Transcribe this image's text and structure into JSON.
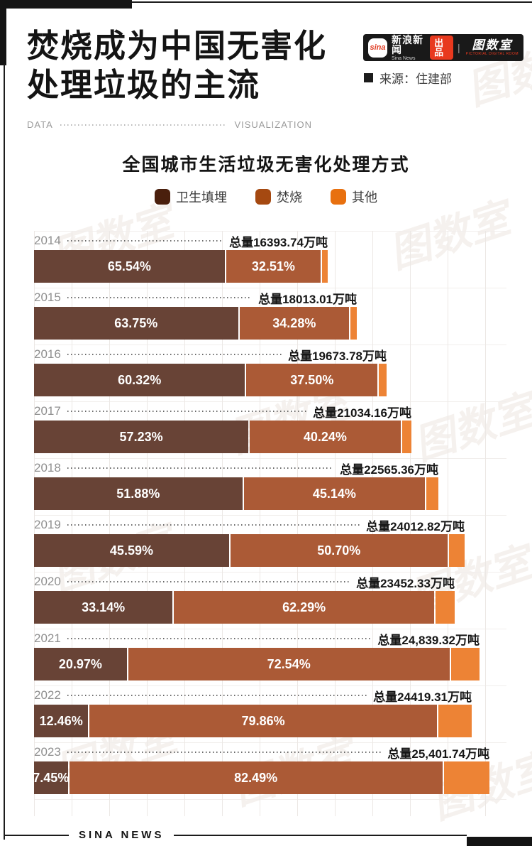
{
  "page": {
    "title_line1": "焚烧成为中国无害化",
    "title_line2": "处理垃圾的主流",
    "subtitle_left": "DATA",
    "subtitle_right": "VISUALIZATION",
    "source_label": "来源：住建部",
    "footer": "SINA NEWS"
  },
  "badge": {
    "sina_logo": "sina",
    "brand": "新浪新闻",
    "brand_en": "Sina News",
    "produce": "出品",
    "divider": "|",
    "studio": "图数室",
    "studio_sub": "PICTORIAL DIGITAL ROOM"
  },
  "watermark": {
    "text": "图数室"
  },
  "colors": {
    "accent_red": "#e8391e",
    "frame_black": "#141414",
    "grid_line": "#ece8e5",
    "year_gray": "#8f8f8f"
  },
  "chart_data": {
    "type": "bar",
    "orientation": "horizontal",
    "stacked": true,
    "title": "全国城市生活垃圾无害化处理方式",
    "unit": "万吨",
    "total_prefix": "总量",
    "bar_length_rule": "bar total length proportional to year total volume; segments sized by percentage",
    "legend": [
      {
        "label": "卫生填埋",
        "color": "#4a1f0d"
      },
      {
        "label": "焚烧",
        "color": "#a54911"
      },
      {
        "label": "其他",
        "color": "#e8700f"
      }
    ],
    "bar_colors": {
      "landfill": "#684336",
      "incineration": "#ab5a36",
      "other": "#ed8335"
    },
    "max_total": 25401.74,
    "series_note": "other_pct = 100 - landfill_pct - incineration_pct (not labeled on chart)",
    "rows": [
      {
        "year": "2014",
        "total": 16393.74,
        "total_label": "总量16393.74万吨",
        "landfill_pct": 65.54,
        "landfill_label": "65.54%",
        "incineration_pct": 32.51,
        "incineration_label": "32.51%"
      },
      {
        "year": "2015",
        "total": 18013.01,
        "total_label": "总量18013.01万吨",
        "landfill_pct": 63.75,
        "landfill_label": "63.75%",
        "incineration_pct": 34.28,
        "incineration_label": "34.28%"
      },
      {
        "year": "2016",
        "total": 19673.78,
        "total_label": "总量19673.78万吨",
        "landfill_pct": 60.32,
        "landfill_label": "60.32%",
        "incineration_pct": 37.5,
        "incineration_label": "37.50%"
      },
      {
        "year": "2017",
        "total": 21034.16,
        "total_label": "总量21034.16万吨",
        "landfill_pct": 57.23,
        "landfill_label": "57.23%",
        "incineration_pct": 40.24,
        "incineration_label": "40.24%"
      },
      {
        "year": "2018",
        "total": 22565.36,
        "total_label": "总量22565.36万吨",
        "landfill_pct": 51.88,
        "landfill_label": "51.88%",
        "incineration_pct": 45.14,
        "incineration_label": "45.14%"
      },
      {
        "year": "2019",
        "total": 24012.82,
        "total_label": "总量24012.82万吨",
        "landfill_pct": 45.59,
        "landfill_label": "45.59%",
        "incineration_pct": 50.7,
        "incineration_label": "50.70%"
      },
      {
        "year": "2020",
        "total": 23452.33,
        "total_label": "总量23452.33万吨",
        "landfill_pct": 33.14,
        "landfill_label": "33.14%",
        "incineration_pct": 62.29,
        "incineration_label": "62.29%"
      },
      {
        "year": "2021",
        "total": 24839.32,
        "total_label": "总量24,839.32万吨",
        "landfill_pct": 20.97,
        "landfill_label": "20.97%",
        "incineration_pct": 72.54,
        "incineration_label": "72.54%"
      },
      {
        "year": "2022",
        "total": 24419.31,
        "total_label": "总量24419.31万吨",
        "landfill_pct": 12.46,
        "landfill_label": "12.46%",
        "incineration_pct": 79.86,
        "incineration_label": "79.86%"
      },
      {
        "year": "2023",
        "total": 25401.74,
        "total_label": "总量25,401.74万吨",
        "landfill_pct": 7.45,
        "landfill_label": "7.45%",
        "incineration_pct": 82.49,
        "incineration_label": "82.49%"
      }
    ]
  }
}
